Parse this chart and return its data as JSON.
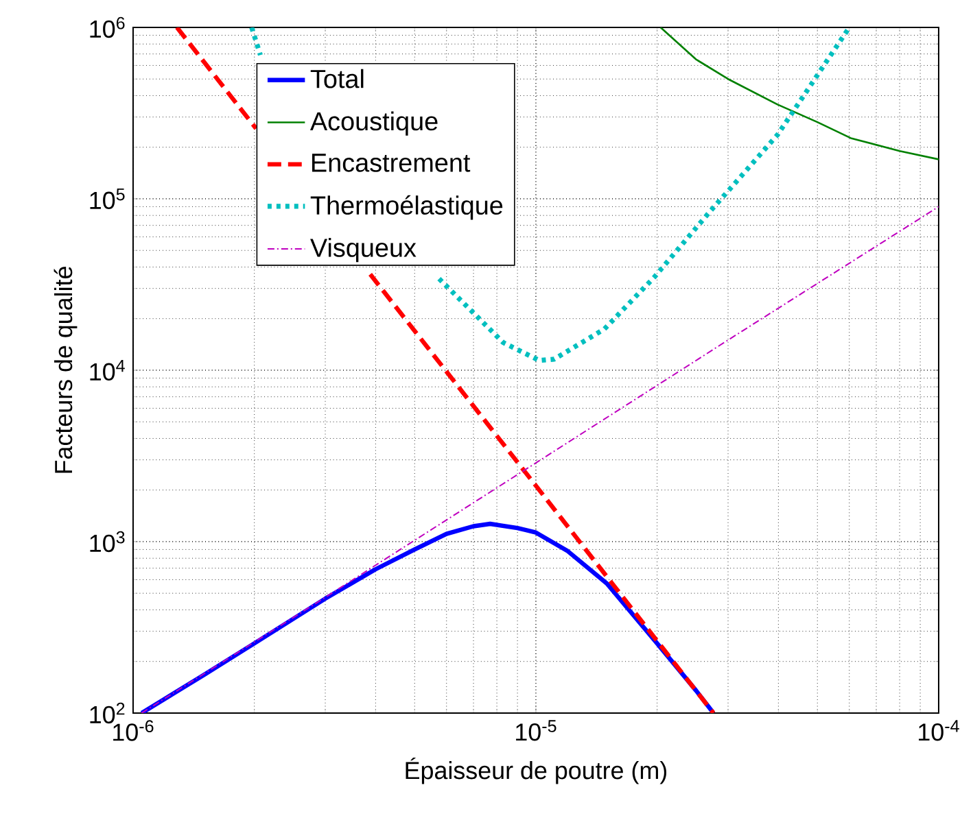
{
  "chart_data": {
    "type": "line",
    "xlabel": "Épaisseur de poutre (m)",
    "ylabel": "Facteurs de qualité",
    "log": "xy",
    "grid": true,
    "legend": "top left",
    "xlim": [
      1e-06,
      0.0001
    ],
    "ylim": [
      100,
      1000000
    ],
    "xticks": [
      {
        "value": 1e-06,
        "label": "10$^{-6}$"
      },
      {
        "value": 1e-05,
        "label": "10$^{-5}$"
      },
      {
        "value": 0.0001,
        "label": "10$^{-4}$"
      }
    ],
    "yticks": [
      {
        "value": 100,
        "label": "10$^{2}$"
      },
      {
        "value": 1000,
        "label": "10$^{3}$"
      },
      {
        "value": 10000,
        "label": "10$^{4}$"
      },
      {
        "value": 100000,
        "label": "10$^{5}$"
      },
      {
        "value": 1000000,
        "label": "10$^{6}$"
      }
    ],
    "series": [
      {
        "name": "Total",
        "color": "#0000ff",
        "line_style": "solid",
        "x": [
          1.05e-06,
          1.5e-06,
          2e-06,
          3e-06,
          4e-06,
          5e-06,
          6e-06,
          7e-06,
          7.7e-06,
          9e-06,
          1e-05,
          1.2e-05,
          1.5e-05,
          2e-05,
          2.5e-05,
          2.76e-05
        ],
        "values": [
          100,
          167,
          255,
          465,
          690,
          900,
          1110,
          1230,
          1270,
          1200,
          1130,
          880,
          570,
          255,
          135,
          100
        ]
      },
      {
        "name": "Acoustique",
        "color": "#008000",
        "line_style": "solid",
        "x": [
          2.04e-05,
          2.5e-05,
          3e-05,
          3.98e-05,
          5e-05,
          6.05e-05,
          8e-05,
          0.0001
        ],
        "values": [
          1000000,
          650000,
          500000,
          355000,
          280000,
          226000,
          190000,
          170000
        ]
      },
      {
        "name": "Encastrement",
        "color": "#ff0000",
        "line_style": "dashed",
        "x": [
          1.285e-06,
          2.02e-06,
          2.8e-06,
          3.88e-06,
          1e-05,
          1.58e-05,
          2.76e-05
        ],
        "values": [
          1000000,
          257000,
          null,
          36300,
          2120,
          535,
          100
        ]
      },
      {
        "name": "Thermoélastique",
        "color": "#00bfbf",
        "line_style": "dotted",
        "x": [
          1.97e-06,
          2.07e-06,
          3e-06,
          5.75e-06,
          8.3e-06,
          1.02e-05,
          1.11e-05,
          1.48e-05,
          1.97e-05,
          2.69e-05,
          3.98e-05,
          6e-05
        ],
        "values": [
          1000000,
          690000,
          null,
          34200,
          14500,
          11400,
          11600,
          17400,
          35000,
          83000,
          236000,
          1000000
        ]
      },
      {
        "name": "Visqueux",
        "color": "#bf00bf",
        "line_style": "dashdot",
        "x": [
          1.05e-06,
          3e-06,
          1e-05,
          3e-05,
          0.0001
        ],
        "values": [
          100,
          473,
          2880,
          15000,
          90000
        ]
      }
    ]
  }
}
